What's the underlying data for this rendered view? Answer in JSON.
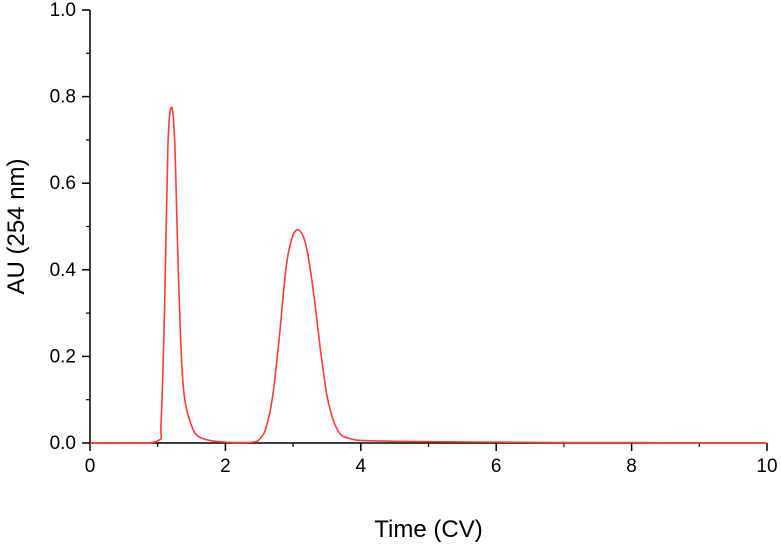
{
  "chart_data": {
    "type": "line",
    "title": "",
    "xlabel": "Time (CV)",
    "ylabel": "AU (254 nm)",
    "xlim": [
      0,
      10
    ],
    "ylim": [
      0.0,
      1.0
    ],
    "x_ticks": [
      0,
      2,
      4,
      6,
      8,
      10
    ],
    "x_tick_labels": [
      "0",
      "2",
      "4",
      "6",
      "8",
      "10"
    ],
    "y_ticks": [
      0.0,
      0.2,
      0.4,
      0.6,
      0.8,
      1.0
    ],
    "y_tick_labels": [
      "0.0",
      "0.2",
      "0.4",
      "0.6",
      "0.8",
      "1.0"
    ],
    "grid": false,
    "series": [
      {
        "color": "#ff3b3b",
        "x": [
          0,
          0.5,
          1.0,
          1.05,
          1.1,
          1.15,
          1.2,
          1.25,
          1.3,
          1.35,
          1.4,
          1.5,
          1.6,
          1.8,
          2.0,
          2.2,
          2.4,
          2.5,
          2.6,
          2.7,
          2.8,
          2.9,
          3.0,
          3.1,
          3.2,
          3.3,
          3.4,
          3.5,
          3.6,
          3.7,
          3.8,
          3.9,
          4.0,
          4.5,
          5.0,
          6.0,
          7.0,
          8.0,
          9.0,
          10.0
        ],
        "y": [
          0.0,
          0.0,
          0.005,
          0.05,
          0.3,
          0.68,
          0.775,
          0.7,
          0.42,
          0.2,
          0.1,
          0.04,
          0.015,
          0.005,
          0.002,
          0.001,
          0.002,
          0.008,
          0.035,
          0.11,
          0.25,
          0.41,
          0.48,
          0.49,
          0.45,
          0.35,
          0.22,
          0.11,
          0.05,
          0.02,
          0.012,
          0.008,
          0.006,
          0.004,
          0.003,
          0.002,
          0.001,
          0.001,
          0.0,
          0.0
        ]
      }
    ]
  }
}
